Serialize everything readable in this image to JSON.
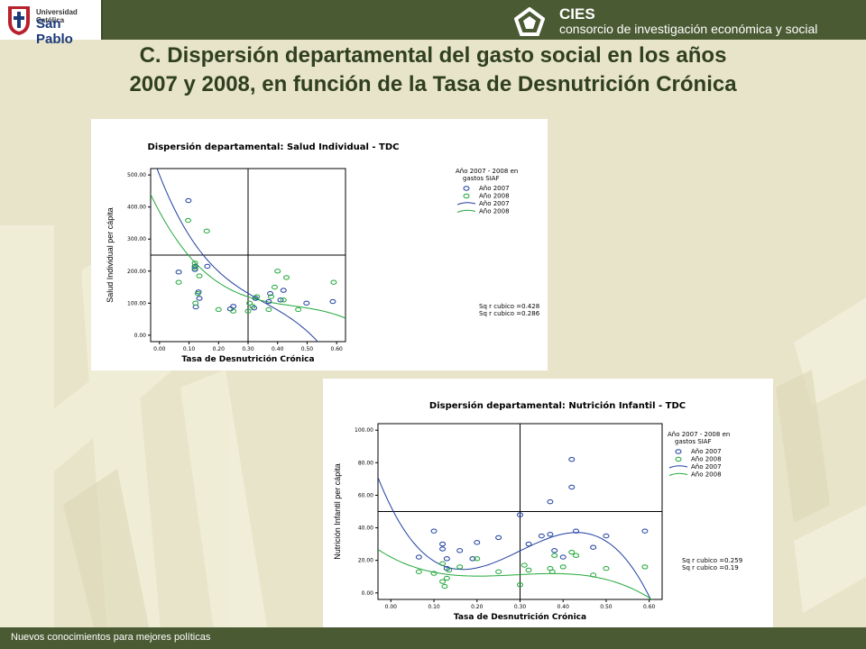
{
  "header": {
    "university_line1": "Universidad Católica",
    "university_line2": "San Pablo",
    "org_name": "CIES",
    "org_subtitle": "consorcio de investigación económica y social"
  },
  "slide": {
    "title_line1": "C. Dispersión departamental del gasto social en los años",
    "title_line2": "2007 y 2008, en función de la Tasa de Desnutrición Crónica"
  },
  "footer": {
    "text": "Nuevos conocimientos para mejores políticas"
  },
  "colors": {
    "bar": "#4a5a33",
    "bg": "#e8e4c9",
    "series_2007": "#1f3fa0",
    "series_2008": "#22a83a"
  },
  "chart_data": [
    {
      "type": "scatter",
      "title": "Dispersión departamental: Salud Individual - TDC",
      "xlabel": "Tasa de Desnutrición Crónica",
      "ylabel": "Salud Individual per cápita",
      "xlim": [
        -0.03,
        0.63
      ],
      "ylim": [
        -20,
        520
      ],
      "x_ticks": [
        "0.00",
        "0.10",
        "0.20",
        "0.30",
        "0.40",
        "0.50",
        "0.60"
      ],
      "x_tick_values": [
        0,
        0.1,
        0.2,
        0.3,
        0.4,
        0.5,
        0.6
      ],
      "y_ticks": [
        "0.00",
        "100.00",
        "200.00",
        "300.00",
        "400.00",
        "500.00"
      ],
      "y_tick_values": [
        0,
        100,
        200,
        300,
        400,
        500
      ],
      "ref_x": 0.3,
      "ref_y": 250,
      "legend_title": "Año 2007 - 2008 en gastos SIAF",
      "legend": [
        "Año 2007",
        "Año 2008",
        "Año 2007",
        "Año 2008"
      ],
      "r2_labels": [
        "Sq r cubico =0.428",
        "Sq r cubico =0.286"
      ],
      "series": [
        {
          "name": "Año 2007",
          "color": "#1f3fa0",
          "x": [
            0.065,
            0.098,
            0.12,
            0.12,
            0.123,
            0.132,
            0.135,
            0.162,
            0.24,
            0.25,
            0.32,
            0.325,
            0.37,
            0.375,
            0.41,
            0.42,
            0.498,
            0.587
          ],
          "y": [
            197,
            420,
            215,
            205,
            88,
            135,
            115,
            215,
            82,
            90,
            85,
            115,
            105,
            130,
            110,
            140,
            100,
            105
          ],
          "fit": [
            500,
            -2350,
            5200,
            -4900
          ]
        },
        {
          "name": "Año 2008",
          "color": "#22a83a",
          "x": [
            0.065,
            0.097,
            0.12,
            0.12,
            0.122,
            0.13,
            0.135,
            0.16,
            0.2,
            0.25,
            0.3,
            0.305,
            0.315,
            0.33,
            0.37,
            0.378,
            0.39,
            0.4,
            0.42,
            0.43,
            0.47,
            0.59
          ],
          "y": [
            165,
            358,
            225,
            210,
            100,
            130,
            185,
            325,
            80,
            75,
            75,
            100,
            90,
            120,
            80,
            120,
            150,
            200,
            110,
            180,
            80,
            165
          ],
          "fit": [
            385,
            -1700,
            3500,
            -2600
          ]
        }
      ]
    },
    {
      "type": "scatter",
      "title": "Dispersión departamental: Nutrición Infantil - TDC",
      "xlabel": "Tasa de Desnutrición Crónica",
      "ylabel": "Nutrición Infantil per cápita",
      "xlim": [
        -0.03,
        0.63
      ],
      "ylim": [
        -4,
        104
      ],
      "x_ticks": [
        "0.00",
        "0.10",
        "0.20",
        "0.30",
        "0.40",
        "0.50",
        "0.60"
      ],
      "x_tick_values": [
        0,
        0.1,
        0.2,
        0.3,
        0.4,
        0.5,
        0.6
      ],
      "y_ticks": [
        "0.00",
        "20.00",
        "40.00",
        "60.00",
        "80.00",
        "100.00"
      ],
      "y_tick_values": [
        0,
        20,
        40,
        60,
        80,
        100
      ],
      "ref_x": 0.3,
      "ref_y": 50,
      "legend_title": "Año 2007 - 2008 en gastos SIAF",
      "legend": [
        "Año 2007",
        "Año 2008",
        "Año 2007",
        "Año 2008"
      ],
      "r2_labels": [
        "Sq r cubico =0.259",
        "Sq r cubico =0.19"
      ],
      "series": [
        {
          "name": "Año 2007",
          "color": "#1f3fa0",
          "x": [
            0.065,
            0.1,
            0.12,
            0.12,
            0.13,
            0.13,
            0.16,
            0.19,
            0.2,
            0.25,
            0.3,
            0.32,
            0.35,
            0.37,
            0.37,
            0.38,
            0.4,
            0.42,
            0.42,
            0.43,
            0.47,
            0.5,
            0.59
          ],
          "y": [
            22,
            38,
            30,
            27,
            15,
            21,
            26,
            21,
            31,
            34,
            48,
            30,
            35,
            36,
            56,
            26,
            22,
            65,
            82,
            38,
            28,
            35,
            38
          ],
          "fit": [
            53,
            -530,
            2200,
            -2450
          ]
        },
        {
          "name": "Año 2008",
          "color": "#22a83a",
          "x": [
            0.065,
            0.1,
            0.12,
            0.12,
            0.125,
            0.13,
            0.135,
            0.16,
            0.2,
            0.25,
            0.3,
            0.31,
            0.32,
            0.37,
            0.375,
            0.38,
            0.4,
            0.42,
            0.43,
            0.47,
            0.5,
            0.59
          ],
          "y": [
            13,
            12,
            18,
            7,
            4,
            9,
            14,
            16,
            21,
            13,
            5,
            17,
            14,
            15,
            13,
            23,
            16,
            25,
            23,
            11,
            15,
            16
          ],
          "fit": [
            22,
            -140,
            530,
            -610
          ]
        }
      ]
    }
  ]
}
